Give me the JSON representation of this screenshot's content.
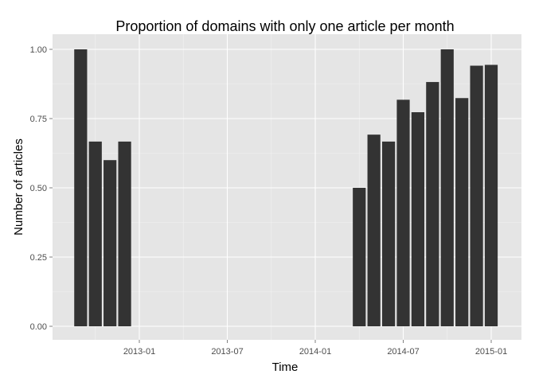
{
  "chart_data": {
    "type": "bar",
    "title": "Proportion of domains with only one article per month",
    "xlabel": "Time",
    "ylabel": "Number of articles",
    "x_ticks": [
      "2013-01",
      "2013-07",
      "2014-01",
      "2014-07",
      "2015-01"
    ],
    "y_ticks": [
      "0.00",
      "0.25",
      "0.50",
      "0.75",
      "1.00"
    ],
    "ylim": [
      -0.05,
      1.05
    ],
    "grid": true,
    "categories": [
      "2012-09",
      "2012-10",
      "2012-11",
      "2012-12",
      "2014-04",
      "2014-05",
      "2014-06",
      "2014-07",
      "2014-08",
      "2014-09",
      "2014-10",
      "2014-11",
      "2014-12",
      "2015-01"
    ],
    "values": [
      1.0,
      0.667,
      0.6,
      0.667,
      0.5,
      0.692,
      0.667,
      0.818,
      0.773,
      0.882,
      1.0,
      0.824,
      0.941,
      0.944
    ],
    "colors": {
      "bar": "#333333",
      "panel": "#e5e5e5",
      "grid_major": "#ffffff",
      "grid_minor": "#f2f2f2",
      "tick_text": "#4d4d4d"
    }
  }
}
